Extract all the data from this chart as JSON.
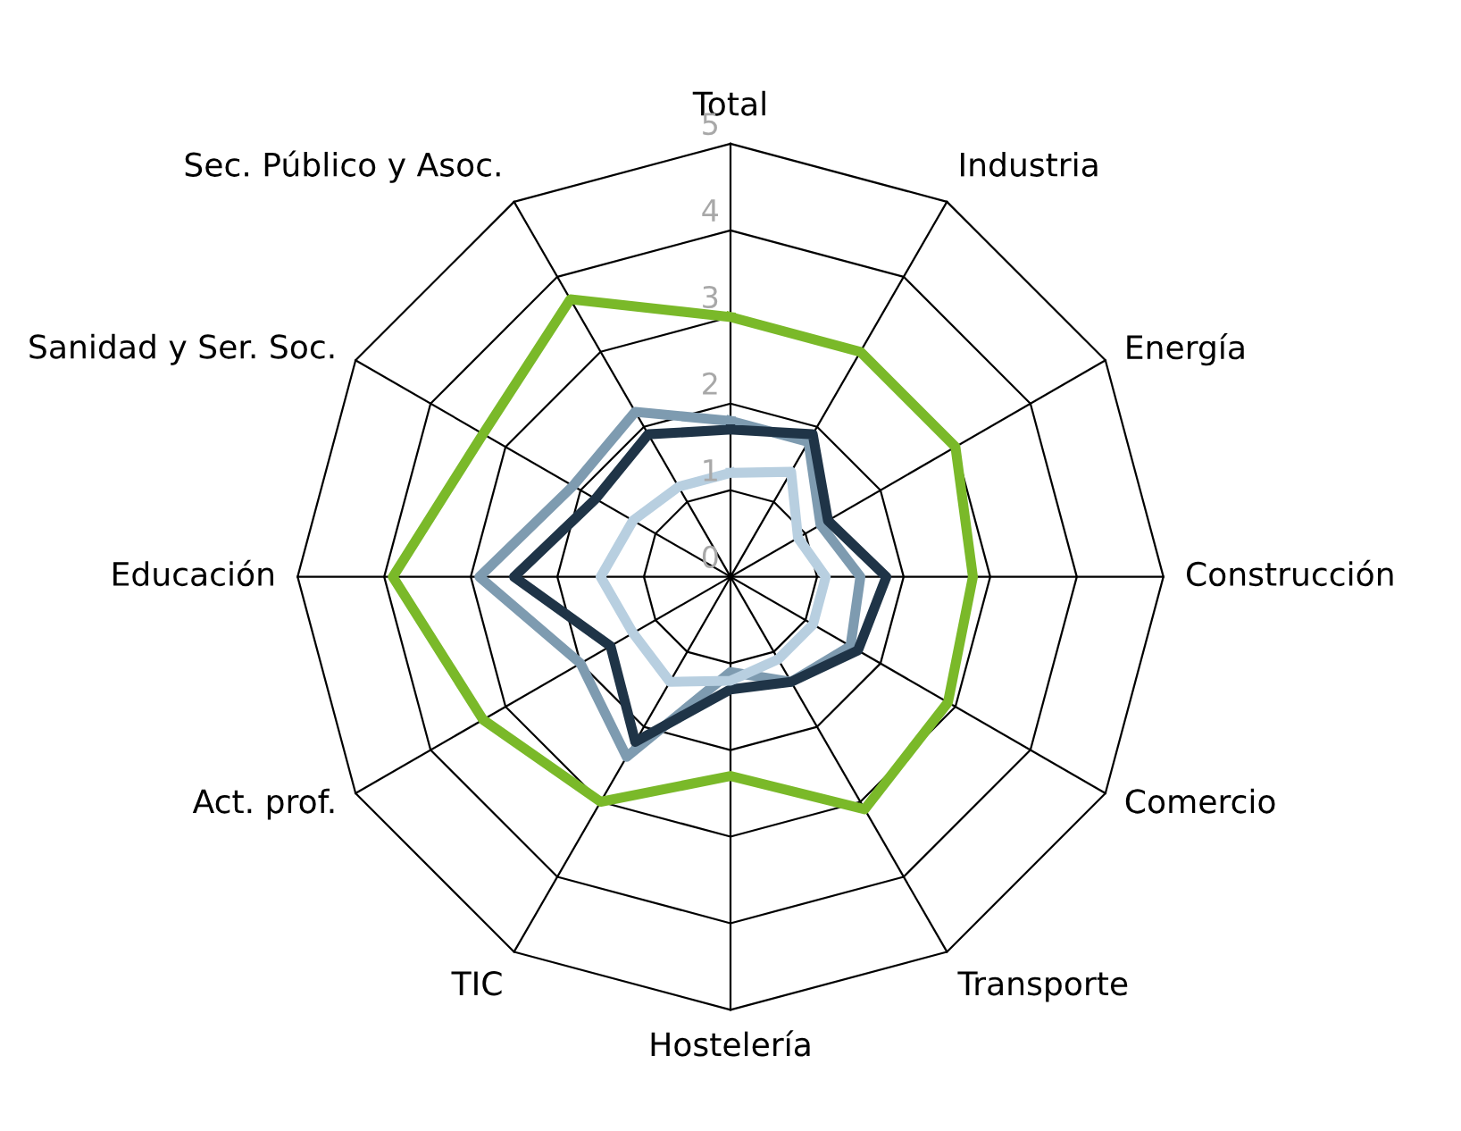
{
  "chart_data": {
    "type": "radar",
    "categories": [
      "Total",
      "Industria",
      "Energía",
      "Construcción",
      "Comercio",
      "Transporte",
      "Hostelería",
      "TIC",
      "Act. prof.",
      "Educación",
      "Sanidad y Ser. Soc.",
      "Sec. Público y Asoc."
    ],
    "series": [
      {
        "color": "#7ab929",
        "values": [
          3.0,
          3.0,
          3.0,
          2.8,
          2.9,
          3.1,
          2.3,
          3.0,
          3.3,
          3.9,
          3.3,
          3.7
        ]
      },
      {
        "color": "#7e9bb0",
        "values": [
          1.8,
          1.8,
          1.2,
          1.5,
          1.6,
          1.4,
          1.1,
          2.4,
          2.0,
          2.9,
          2.1,
          2.2
        ]
      },
      {
        "color": "#1f3447",
        "values": [
          1.7,
          1.9,
          1.3,
          1.8,
          1.7,
          1.4,
          1.3,
          2.2,
          1.6,
          2.5,
          1.8,
          1.9
        ]
      },
      {
        "color": "#b8cfe0",
        "values": [
          1.2,
          1.4,
          0.9,
          1.1,
          1.1,
          1.1,
          1.2,
          1.4,
          1.3,
          1.5,
          1.3,
          1.2
        ]
      }
    ],
    "ylim": [
      0,
      5
    ],
    "yticks": [
      0,
      1,
      2,
      3,
      4,
      5
    ],
    "grid": true,
    "legend": false
  }
}
